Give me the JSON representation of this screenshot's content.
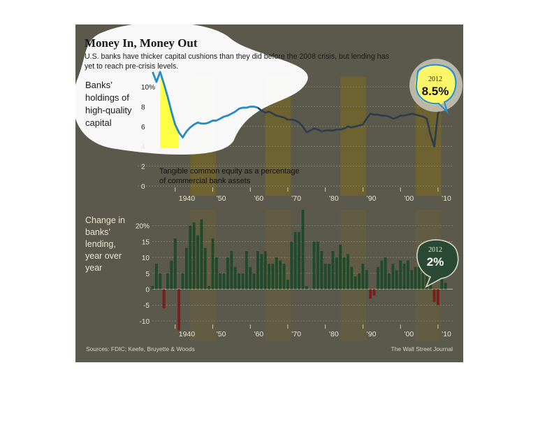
{
  "header": {
    "title": "Money In, Money Out",
    "subtitle_lines": [
      "U.S. banks have thicker capital cushions than they did before the 2008 crisis, but lending has",
      "yet to reach pre-crisis levels."
    ]
  },
  "footer": {
    "sources": "Sources: FDIC; Keefe, Bruyette & Woods",
    "credit": "The Wall Street Journal"
  },
  "colors": {
    "panel": "#5b594c",
    "band": "#6d6230",
    "line": "#2b3d4f",
    "line_highlight": "#1d8fd6",
    "highlight_fill": "#ffff3a",
    "bar_positive": "#1f4a2c",
    "bar_negative": "#7a1d1d",
    "text": "#e9e6d2",
    "grid": "#8d8a78"
  },
  "chart_data": [
    {
      "type": "line",
      "ylabel_lines": [
        "Banks’",
        "holdings of",
        "high-quality",
        "capital"
      ],
      "annotation_lines": [
        "Tangible common equity as a percentage",
        "of commercial bank assets"
      ],
      "callout": {
        "year": "2012",
        "value": "8.5%"
      },
      "ylim": [
        0,
        11
      ],
      "yticks": [
        "10%",
        "8",
        "6",
        "4",
        "2",
        "0"
      ],
      "x_tick_labels": [
        "1940",
        "’50",
        "’60",
        "’70",
        "’80",
        "’90",
        "’00",
        "’10"
      ],
      "x": [
        1934,
        1935,
        1936,
        1937,
        1938,
        1939,
        1940,
        1941,
        1942,
        1943,
        1944,
        1945,
        1946,
        1947,
        1948,
        1949,
        1950,
        1951,
        1952,
        1953,
        1954,
        1955,
        1956,
        1957,
        1958,
        1959,
        1960,
        1961,
        1962,
        1963,
        1964,
        1965,
        1966,
        1967,
        1968,
        1969,
        1970,
        1971,
        1972,
        1973,
        1974,
        1975,
        1976,
        1977,
        1978,
        1979,
        1980,
        1981,
        1982,
        1983,
        1984,
        1985,
        1986,
        1987,
        1988,
        1989,
        1990,
        1991,
        1992,
        1993,
        1994,
        1995,
        1996,
        1997,
        1998,
        1999,
        2000,
        2001,
        2002,
        2003,
        2004,
        2005,
        2006,
        2007,
        2008,
        2009,
        2010,
        2011,
        2012
      ],
      "values": [
        11.5,
        10.5,
        11.5,
        10.3,
        9.0,
        7.5,
        6.2,
        5.4,
        4.9,
        5.5,
        5.9,
        6.2,
        6.4,
        6.3,
        6.3,
        6.4,
        6.6,
        6.6,
        6.8,
        7.0,
        7.1,
        7.3,
        7.5,
        7.8,
        7.9,
        7.9,
        8.0,
        8.0,
        7.9,
        7.6,
        7.4,
        7.5,
        7.3,
        7.1,
        7.0,
        6.9,
        6.7,
        6.7,
        6.6,
        6.4,
        6.0,
        5.4,
        5.6,
        5.8,
        5.7,
        5.5,
        5.6,
        5.6,
        5.6,
        5.7,
        5.7,
        5.8,
        6.0,
        5.9,
        6.0,
        6.1,
        6.2,
        6.8,
        7.3,
        7.2,
        7.2,
        7.1,
        7.1,
        7.0,
        6.8,
        6.9,
        7.1,
        7.1,
        7.2,
        7.3,
        7.2,
        7.1,
        7.0,
        6.8,
        5.2,
        4.0,
        7.3,
        8.0,
        8.5
      ]
    },
    {
      "type": "bar",
      "ylabel_lines": [
        "Change in",
        "banks’",
        "lending,",
        "year over",
        "year"
      ],
      "callout": {
        "year": "2012",
        "value": "2%"
      },
      "ylim": [
        -12,
        25
      ],
      "yticks": [
        "20%",
        "15",
        "10",
        "5",
        "0",
        "-5",
        "-10"
      ],
      "x_tick_labels": [
        "1940",
        "’50",
        "’60",
        "’70",
        "’80",
        "’90",
        "’00",
        "’10"
      ],
      "x": [
        1934,
        1935,
        1936,
        1937,
        1938,
        1939,
        1940,
        1941,
        1942,
        1943,
        1944,
        1945,
        1946,
        1947,
        1948,
        1949,
        1950,
        1951,
        1952,
        1953,
        1954,
        1955,
        1956,
        1957,
        1958,
        1959,
        1960,
        1961,
        1962,
        1963,
        1964,
        1965,
        1966,
        1967,
        1968,
        1969,
        1970,
        1971,
        1972,
        1973,
        1974,
        1975,
        1976,
        1977,
        1978,
        1979,
        1980,
        1981,
        1982,
        1983,
        1984,
        1985,
        1986,
        1987,
        1988,
        1989,
        1990,
        1991,
        1992,
        1993,
        1994,
        1995,
        1996,
        1997,
        1998,
        1999,
        2000,
        2001,
        2002,
        2003,
        2004,
        2005,
        2006,
        2007,
        2008,
        2009,
        2010,
        2011,
        2012
      ],
      "values": [
        1,
        8,
        5,
        -6,
        5,
        9,
        16,
        -13,
        5,
        13,
        20,
        21,
        17,
        22,
        13,
        1,
        16,
        10,
        5,
        5,
        10,
        12,
        7,
        5,
        5,
        12,
        7,
        5,
        12,
        11,
        12,
        8,
        8,
        10,
        9,
        8,
        3,
        15,
        18,
        18,
        25,
        1,
        0,
        15,
        15,
        12,
        8,
        8,
        12,
        10,
        14,
        10,
        11,
        7,
        4,
        5,
        8,
        6,
        -3,
        -2,
        7,
        9,
        10,
        5,
        8,
        6,
        9,
        8,
        9,
        6,
        7,
        7,
        11,
        11,
        11,
        -4,
        -5,
        5,
        2
      ]
    }
  ]
}
